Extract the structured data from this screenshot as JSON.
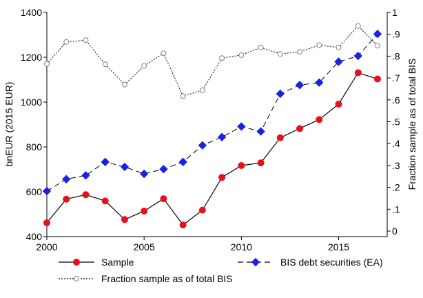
{
  "chart_data": {
    "type": "line",
    "title": "",
    "xlabel": "",
    "ylabel": "bnEUR (2015 EUR)",
    "y2label": "Fraction sample as of total BIS",
    "xlim": [
      2000,
      2017
    ],
    "ylim": [
      400,
      1400
    ],
    "y2lim": [
      0,
      1
    ],
    "x_ticks": [
      2000,
      2005,
      2010,
      2015
    ],
    "y_ticks": [
      400,
      600,
      800,
      1000,
      1200,
      1400
    ],
    "y2_ticks": [
      0,
      0.1,
      0.2,
      0.3,
      0.4,
      0.5,
      0.6,
      0.7,
      0.8,
      0.9,
      1
    ],
    "y2_tick_labels": [
      "0",
      ".1",
      ".2",
      ".3",
      ".4",
      ".5",
      ".6",
      ".7",
      ".8",
      ".9",
      "1"
    ],
    "grid": false,
    "legend_position": "bottom",
    "x": [
      2000,
      2001,
      2002,
      2003,
      2004,
      2005,
      2006,
      2007,
      2008,
      2009,
      2010,
      2011,
      2012,
      2013,
      2014,
      2015,
      2016,
      2017
    ],
    "series": [
      {
        "name": "Sample",
        "axis": "left",
        "color": "#e8101a",
        "line_style": "solid",
        "marker": "circle",
        "values": [
          462,
          567,
          587,
          559,
          476,
          514,
          569,
          452,
          518,
          664,
          717,
          729,
          841,
          882,
          922,
          991,
          1131,
          1103
        ]
      },
      {
        "name": "BIS debt securities (EA)",
        "axis": "left",
        "color": "#1a22e8",
        "line_style": "dashed",
        "marker": "diamond",
        "values": [
          603,
          656,
          673,
          733,
          711,
          680,
          701,
          733,
          807,
          844,
          891,
          869,
          1037,
          1076,
          1087,
          1180,
          1206,
          1304
        ]
      },
      {
        "name": "Fraction sample as of total BIS",
        "axis": "right",
        "color": "#808080",
        "line_style": "dotted",
        "marker": "hollow-circle",
        "values": [
          0.765,
          0.865,
          0.873,
          0.763,
          0.67,
          0.755,
          0.813,
          0.617,
          0.644,
          0.791,
          0.805,
          0.84,
          0.81,
          0.82,
          0.85,
          0.84,
          0.938,
          0.848
        ]
      }
    ]
  }
}
